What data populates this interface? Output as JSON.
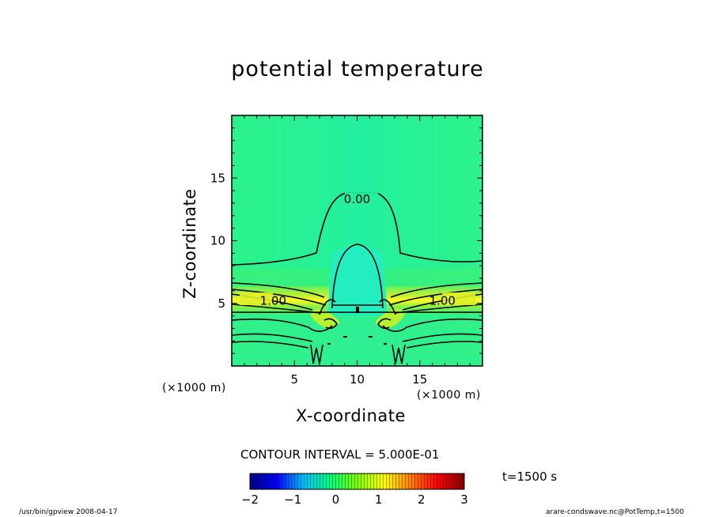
{
  "chart_data": {
    "type": "heatmap",
    "title": "potential temperature",
    "xlabel": "X-coordinate",
    "ylabel": "Z-coordinate",
    "x_unit": "(×1000 m)",
    "y_unit": "(×1000 m)",
    "xlim": [
      0,
      20
    ],
    "ylim": [
      0,
      20
    ],
    "x_ticks": [
      5,
      10,
      15
    ],
    "y_ticks": [
      5,
      10,
      15
    ],
    "contour_labels": [
      {
        "text": "0.00",
        "x": 10,
        "z": 13.3
      },
      {
        "text": "1.00",
        "x": 3.3,
        "z": 5.2
      },
      {
        "text": "1.00",
        "x": 16.8,
        "z": 5.2
      }
    ],
    "contour_interval_text": "CONTOUR INTERVAL = 5.000E-01",
    "colorbar": {
      "min": -2,
      "max": 3,
      "tick_labels": [
        "−2",
        "−1",
        "0",
        "1",
        "2",
        "3"
      ],
      "colors": [
        "#00008b",
        "#0000ff",
        "#00bfff",
        "#00ff80",
        "#80ff00",
        "#ffff00",
        "#ff8000",
        "#ff0000",
        "#8b0000"
      ]
    },
    "time_label": "t=1500 s"
  },
  "footer": {
    "left": "/usr/bin/gpview   2008-04-17",
    "right": "arare-condswave.nc@PotTemp,t=1500"
  }
}
